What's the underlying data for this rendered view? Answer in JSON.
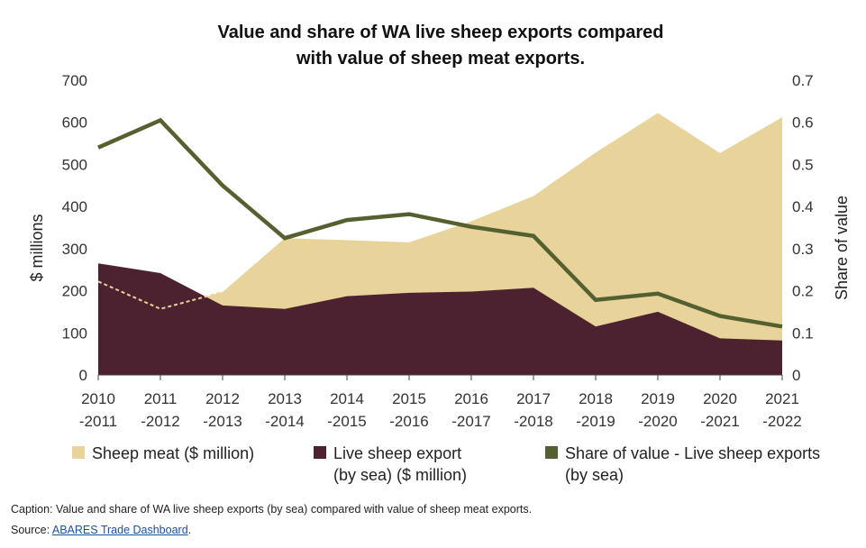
{
  "chart_data": {
    "type": "area",
    "title_lines": [
      "Value and share of WA live sheep exports compared",
      "with value of sheep meat exports."
    ],
    "ylabel": "$ millions",
    "y2label": "Share of value",
    "ylim": [
      0,
      700
    ],
    "y2lim": [
      0,
      0.7
    ],
    "yticks": [
      "0",
      "100",
      "200",
      "300",
      "400",
      "500",
      "600",
      "700"
    ],
    "y2ticks": [
      "0",
      "0.1",
      "0.2",
      "0.3",
      "0.4",
      "0.5",
      "0.6",
      "0.7"
    ],
    "categories": [
      [
        "2010",
        "-2011"
      ],
      [
        "2011",
        "-2012"
      ],
      [
        "2012",
        "-2013"
      ],
      [
        "2013",
        "-2014"
      ],
      [
        "2014",
        "-2015"
      ],
      [
        "2015",
        "-2016"
      ],
      [
        "2016",
        "-2017"
      ],
      [
        "2017",
        "-2018"
      ],
      [
        "2018",
        "-2019"
      ],
      [
        "2019",
        "-2020"
      ],
      [
        "2020",
        "-2021"
      ],
      [
        "2021",
        "-2022"
      ]
    ],
    "grid": false,
    "legend_position": "bottom",
    "series": [
      {
        "name_lines": [
          "Sheep meat ($ million)"
        ],
        "type": "area",
        "axis": "left",
        "color": "#e8d49a",
        "values": [
          222,
          157,
          197,
          325,
          320,
          315,
          365,
          425,
          528,
          622,
          527,
          612
        ]
      },
      {
        "name_lines": [
          "Live sheep export",
          "(by sea) ($ million)"
        ],
        "type": "area",
        "axis": "left",
        "color": "#4d2230",
        "values": [
          265,
          242,
          165,
          157,
          187,
          195,
          198,
          207,
          115,
          150,
          87,
          82
        ]
      },
      {
        "name_lines": [
          "Share of value - Live sheep exports",
          "(by sea)"
        ],
        "type": "line",
        "axis": "right",
        "color": "#556030",
        "values": [
          0.54,
          0.605,
          0.45,
          0.325,
          0.368,
          0.382,
          0.352,
          0.33,
          0.178,
          0.193,
          0.14,
          0.115
        ]
      }
    ]
  },
  "caption": {
    "text": "Caption: Value and share of WA live sheep exports (by sea) compared with value of sheep meat exports.",
    "source_prefix": "Source: ",
    "source_link": "ABARES Trade Dashboard",
    "source_suffix": "."
  }
}
